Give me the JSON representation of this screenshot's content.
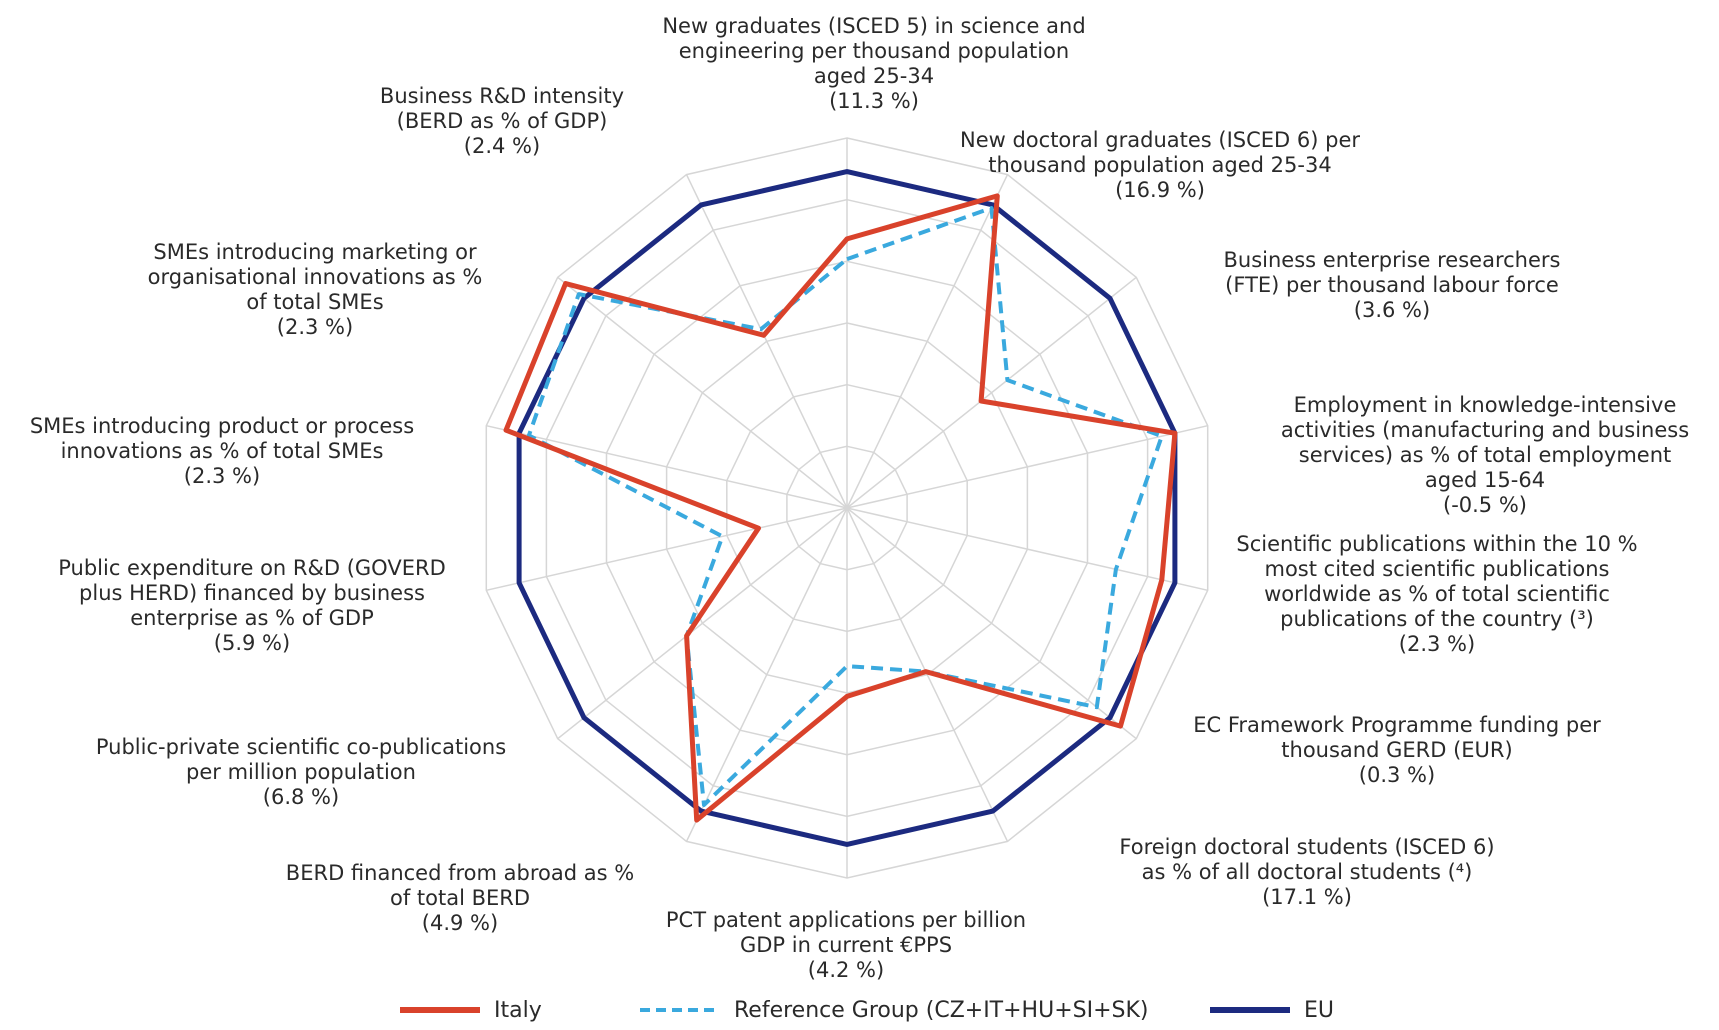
{
  "chart_data": {
    "type": "radar",
    "title": "",
    "axes": [
      {
        "lines": [
          "New graduates (ISCED 5) in science and",
          "engineering per thousand population",
          "aged 25-34",
          "(11.3 %)"
        ]
      },
      {
        "lines": [
          "New doctoral graduates (ISCED 6) per",
          "thousand population aged 25-34",
          "(16.9 %)"
        ]
      },
      {
        "lines": [
          "Business enterprise researchers",
          "(FTE) per thousand labour force",
          "(3.6 %)"
        ]
      },
      {
        "lines": [
          "Employment in knowledge-intensive",
          "activities (manufacturing and business",
          "services) as % of total employment",
          "aged 15-64",
          "(-0.5 %)"
        ]
      },
      {
        "lines": [
          "Scientific publications within the 10 %",
          "most cited scientific publications",
          "worldwide as % of total scientific",
          "publications of the country (³)",
          "(2.3 %)"
        ]
      },
      {
        "lines": [
          "EC Framework Programme funding per",
          "thousand GERD (EUR)",
          "(0.3 %)"
        ]
      },
      {
        "lines": [
          "Foreign doctoral students (ISCED 6)",
          "as % of all doctoral students (⁴)",
          "(17.1 %)"
        ]
      },
      {
        "lines": [
          "PCT patent applications per billion",
          "GDP in current €PPS",
          "(4.2 %)"
        ]
      },
      {
        "lines": [
          "BERD financed from abroad as %",
          "of total BERD",
          "(4.9 %)"
        ]
      },
      {
        "lines": [
          "Public-private scientific co-publications",
          "per million population",
          "(6.8 %)"
        ]
      },
      {
        "lines": [
          "Public expenditure on R&D (GOVERD",
          "plus HERD) financed by business",
          "enterprise as % of GDP",
          "(5.9 %)"
        ]
      },
      {
        "lines": [
          "SMEs introducing product or process",
          "innovations as % of total SMEs",
          "(2.3 %)"
        ]
      },
      {
        "lines": [
          "SMEs introducing marketing or",
          "organisational innovations as %",
          "of total SMEs",
          "(2.3 %)"
        ]
      },
      {
        "lines": [
          "Business R&D intensity",
          "(BERD as % of GDP)",
          "(2.4 %)"
        ]
      }
    ],
    "series": [
      {
        "name": "Italy",
        "color": "#d9422b",
        "style": "solid",
        "values": [
          0.8,
          1.03,
          0.51,
          1.0,
          0.96,
          1.04,
          0.54,
          0.56,
          1.03,
          0.61,
          0.27,
          1.04,
          1.07,
          0.57
        ]
      },
      {
        "name": "Reference Group (CZ+IT+HU+SI+SK)",
        "color": "#3aa9de",
        "style": "dashed",
        "values": [
          0.74,
          0.99,
          0.61,
          0.96,
          0.82,
          0.95,
          0.54,
          0.47,
          0.98,
          0.61,
          0.38,
          0.97,
          1.02,
          0.59
        ]
      },
      {
        "name": "EU",
        "color": "#1c2a80",
        "style": "solid",
        "values": [
          1.0,
          1.0,
          1.0,
          1.0,
          1.0,
          1.0,
          1.0,
          1.0,
          1.0,
          1.0,
          1.0,
          1.0,
          1.0,
          1.0
        ]
      }
    ],
    "rlim": [
      0,
      1.1
    ],
    "grid": true,
    "legend_position": "bottom"
  }
}
